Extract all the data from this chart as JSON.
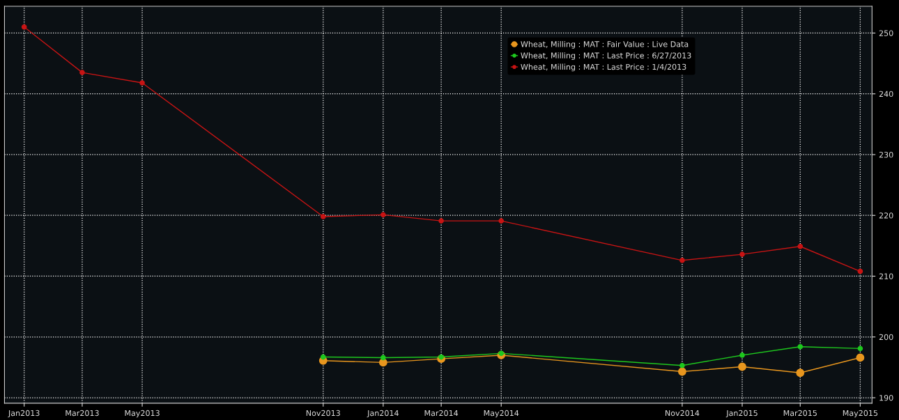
{
  "chart_data": {
    "type": "line",
    "xlim": [
      "2012-12-12",
      "2015-05-13"
    ],
    "ylim": [
      189.1,
      254.4
    ],
    "xticks": [
      {
        "value": "2013-01-01",
        "label": "Jan2013"
      },
      {
        "value": "2013-03-01",
        "label": "Mar2013"
      },
      {
        "value": "2013-05-01",
        "label": "May2013"
      },
      {
        "value": "2013-11-01",
        "label": "Nov2013"
      },
      {
        "value": "2014-01-01",
        "label": "Jan2014"
      },
      {
        "value": "2014-03-01",
        "label": "Mar2014"
      },
      {
        "value": "2014-05-01",
        "label": "May2014"
      },
      {
        "value": "2014-11-01",
        "label": "Nov2014"
      },
      {
        "value": "2015-01-01",
        "label": "Jan2015"
      },
      {
        "value": "2015-03-01",
        "label": "Mar2015"
      },
      {
        "value": "2015-05-01",
        "label": "May2015"
      }
    ],
    "yticks": [
      190,
      200,
      210,
      220,
      230,
      240,
      250
    ],
    "grid": true,
    "legend": "top right",
    "marker": "circle",
    "line_style": "solid",
    "series": [
      {
        "name": "Wheat, Milling : MAT : Fair Value : Live Data",
        "color": "#e8961e",
        "x": [
          "2013-11-01",
          "2014-01-01",
          "2014-03-01",
          "2014-05-01",
          "2014-11-01",
          "2015-01-01",
          "2015-03-01",
          "2015-05-01"
        ],
        "values": [
          196.1,
          195.8,
          196.4,
          197.0,
          194.3,
          195.1,
          194.1,
          196.6
        ]
      },
      {
        "name": "Wheat, Milling : MAT : Last Price : 6/27/2013",
        "color": "#1ec81e",
        "x": [
          "2013-11-01",
          "2014-01-01",
          "2014-03-01",
          "2014-05-01",
          "2014-11-01",
          "2015-01-01",
          "2015-03-01",
          "2015-05-01"
        ],
        "values": [
          196.7,
          196.6,
          196.7,
          197.3,
          195.3,
          197.0,
          198.4,
          198.1
        ]
      },
      {
        "name": "Wheat, Milling : MAT : Last Price : 1/4/2013",
        "color": "#c81414",
        "x": [
          "2013-01-01",
          "2013-03-01",
          "2013-05-01",
          "2013-11-01",
          "2014-01-01",
          "2014-03-01",
          "2014-05-01",
          "2014-11-01",
          "2015-01-01",
          "2015-03-01",
          "2015-05-01"
        ],
        "values": [
          251.0,
          243.5,
          241.8,
          219.8,
          220.1,
          219.1,
          219.1,
          212.6,
          213.6,
          214.9,
          210.8
        ]
      }
    ]
  }
}
